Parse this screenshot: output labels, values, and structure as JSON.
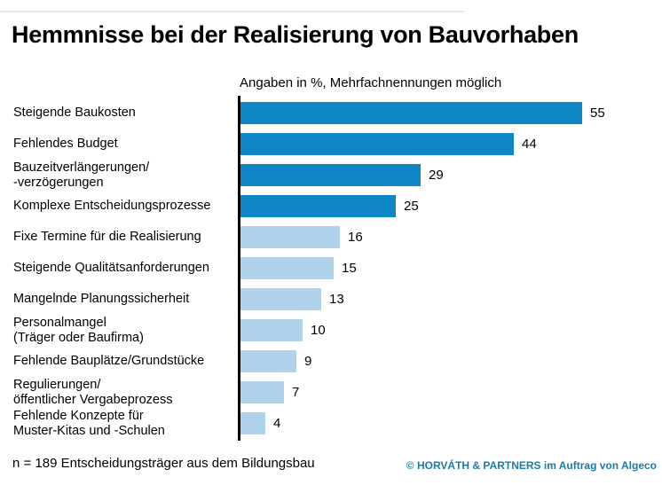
{
  "title": "Hemmnisse bei der Realisierung von Bauvorhaben",
  "subtitle": "Angaben in %, Mehrfachnennungen möglich",
  "footer": {
    "note": "n = 189 Entscheidungsträger aus dem Bildungsbau",
    "attribution": "© HORVÁTH & PARTNERS im Auftrag von Algeco"
  },
  "colors": {
    "bar_primary": "#0F87C6",
    "bar_secondary": "#AED3EA",
    "axis": "#000000",
    "attribution_text": "#1A7CA8"
  },
  "chart_data": {
    "type": "bar",
    "orientation": "horizontal",
    "title": "Hemmnisse bei der Realisierung von Bauvorhaben",
    "subtitle": "Angaben in %, Mehrfachnennungen möglich",
    "unit": "%",
    "xlim": [
      0,
      60
    ],
    "grid": false,
    "legend": false,
    "categories": [
      "Steigende Baukosten",
      "Fehlendes Budget",
      "Bauzeitverlängerungen/\n-verzögerungen",
      "Komplexe Entscheidungsprozesse",
      "Fixe Termine für die Realisierung",
      "Steigende Qualitätsanforderungen",
      "Mangelnde Planungssicherheit",
      "Personalmangel\n(Träger oder Baufirma)",
      "Fehlende Bauplätze/Grundstücke",
      "Regulierungen/\nöffentlicher Vergabeprozess",
      "Fehlende Konzepte für\nMuster-Kitas und -Schulen"
    ],
    "values": [
      55,
      44,
      29,
      25,
      16,
      15,
      13,
      10,
      9,
      7,
      4
    ],
    "emphasized": [
      true,
      true,
      true,
      true,
      false,
      false,
      false,
      false,
      false,
      false,
      false
    ]
  }
}
